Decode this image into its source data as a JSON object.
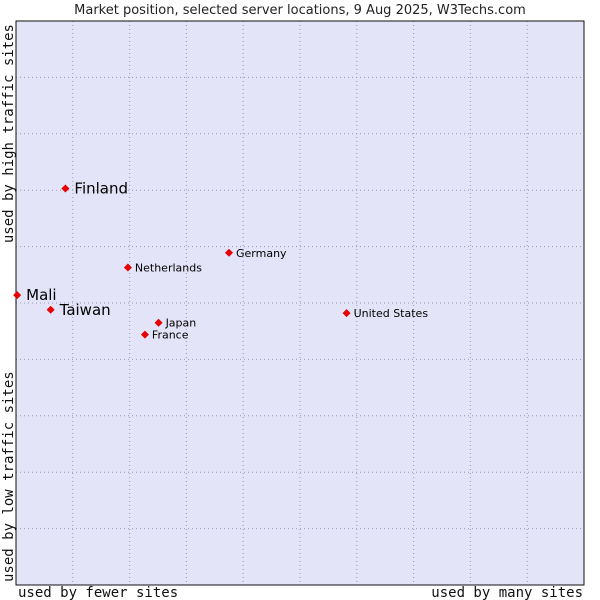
{
  "chart_data": {
    "type": "scatter",
    "title": "Market position, selected server locations, 9 Aug 2025, W3Techs.com",
    "xlabel_left": "used by fewer sites",
    "xlabel_right": "used by many sites",
    "ylabel_top": "used by high traffic sites",
    "ylabel_bottom": "used by low traffic sites",
    "xlim": [
      0,
      100
    ],
    "ylim": [
      0,
      100
    ],
    "grid": true,
    "colors": {
      "plot_bg": "#e4e4f8",
      "grid": "#9a9ab4",
      "frame": "#111111",
      "marker": "#e60000"
    },
    "points": [
      {
        "name": "Finland",
        "x": 8.7,
        "y": 70.3,
        "size": "large"
      },
      {
        "name": "Germany",
        "x": 37.5,
        "y": 58.9,
        "size": "small"
      },
      {
        "name": "Netherlands",
        "x": 19.7,
        "y": 56.3,
        "size": "small"
      },
      {
        "name": "Mali",
        "x": 0.2,
        "y": 51.4,
        "size": "large"
      },
      {
        "name": "Taiwan",
        "x": 6.1,
        "y": 48.8,
        "size": "large"
      },
      {
        "name": "United States",
        "x": 58.2,
        "y": 48.2,
        "size": "small"
      },
      {
        "name": "Japan",
        "x": 25.1,
        "y": 46.5,
        "size": "small"
      },
      {
        "name": "France",
        "x": 22.7,
        "y": 44.4,
        "size": "small"
      }
    ]
  }
}
